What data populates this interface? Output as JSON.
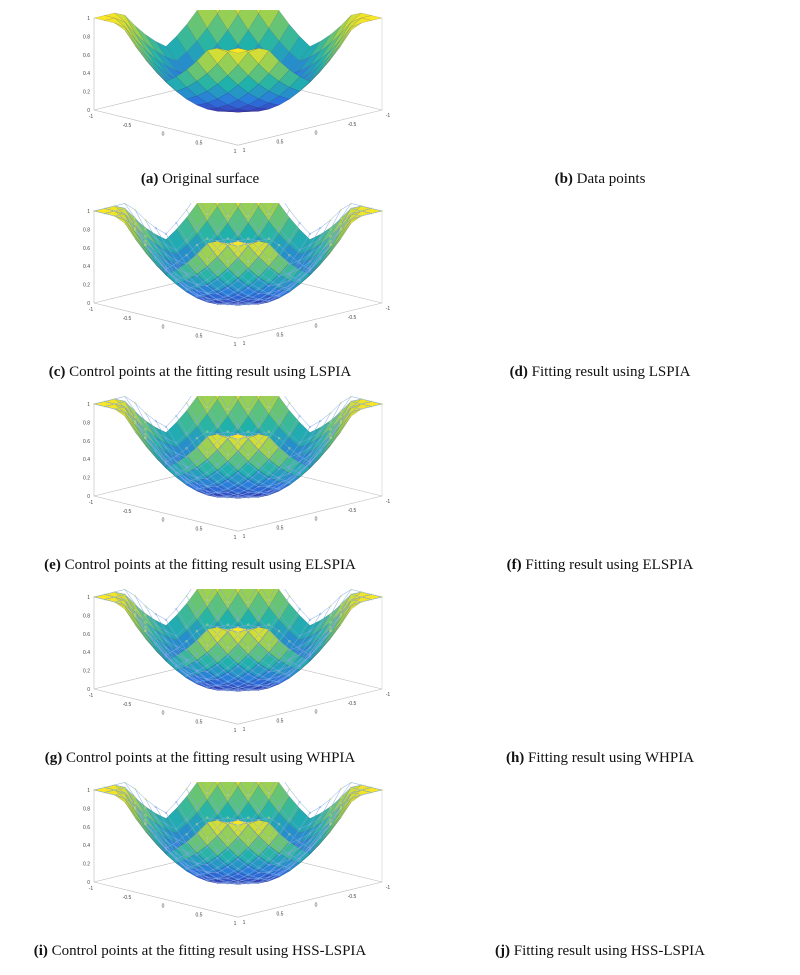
{
  "figure": {
    "panels": [
      {
        "label": "(a)",
        "caption": "Original surface",
        "style": "surface"
      },
      {
        "label": "(b)",
        "caption": "Data points",
        "style": "points"
      },
      {
        "label": "(c)",
        "caption": "Control points at the fitting result using LSPIA",
        "style": "control"
      },
      {
        "label": "(d)",
        "caption": "Fitting result using LSPIA",
        "style": "surface"
      },
      {
        "label": "(e)",
        "caption": "Control points at the fitting result using ELSPIA",
        "style": "control"
      },
      {
        "label": "(f)",
        "caption": "Fitting result using ELSPIA",
        "style": "surface"
      },
      {
        "label": "(g)",
        "caption": "Control points at the fitting result using WHPIA",
        "style": "control"
      },
      {
        "label": "(h)",
        "caption": "Fitting result using WHPIA",
        "style": "surface"
      },
      {
        "label": "(i)",
        "caption": "Control points at the fitting result using HSS-LSPIA",
        "style": "control"
      },
      {
        "label": "(j)",
        "caption": "Fitting result using HSS-LSPIA",
        "style": "surface"
      }
    ],
    "z_ticks": [
      "0",
      "0.2",
      "0.4",
      "0.6",
      "0.8",
      "1"
    ],
    "xy_ticks": [
      "1",
      "0.5",
      "0",
      "-0.5",
      "-1"
    ],
    "colors": {
      "surface_low": "#3b2fc6",
      "surface_high": "#f7e625",
      "points_line": "#7fa6e6",
      "points_high": "#d4e86a"
    }
  }
}
